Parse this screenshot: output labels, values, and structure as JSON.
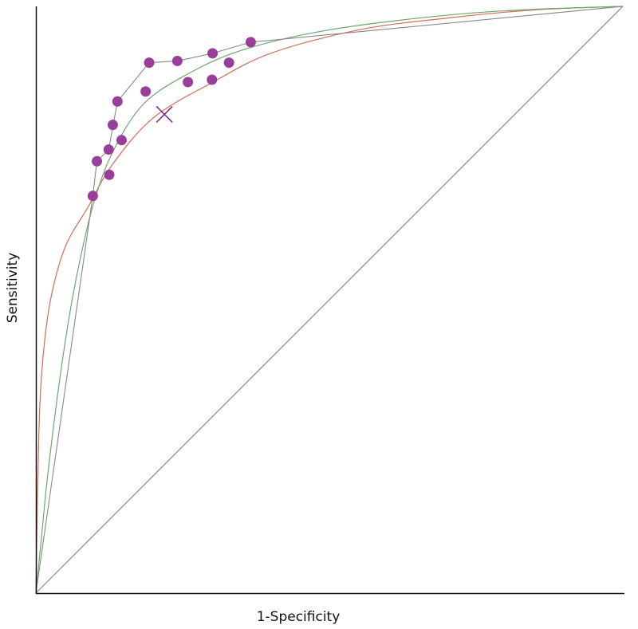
{
  "chart_data": {
    "type": "scatter",
    "xlabel": "1-Specificity",
    "ylabel": "Sensitivity",
    "xlim": [
      0,
      1
    ],
    "ylim": [
      0,
      1
    ],
    "grid": false,
    "legend": "none",
    "points": [
      {
        "x": 0.097,
        "y": 0.677
      },
      {
        "x": 0.104,
        "y": 0.736
      },
      {
        "x": 0.125,
        "y": 0.713
      },
      {
        "x": 0.124,
        "y": 0.756
      },
      {
        "x": 0.146,
        "y": 0.772
      },
      {
        "x": 0.131,
        "y": 0.798
      },
      {
        "x": 0.139,
        "y": 0.838
      },
      {
        "x": 0.187,
        "y": 0.855
      },
      {
        "x": 0.193,
        "y": 0.904
      },
      {
        "x": 0.241,
        "y": 0.907
      },
      {
        "x": 0.259,
        "y": 0.871
      },
      {
        "x": 0.3,
        "y": 0.875
      },
      {
        "x": 0.301,
        "y": 0.92
      },
      {
        "x": 0.329,
        "y": 0.904
      },
      {
        "x": 0.366,
        "y": 0.939
      }
    ],
    "summary_point": {
      "x": 0.219,
      "y": 0.816
    },
    "envelope": [
      {
        "x": 0,
        "y": 0
      },
      {
        "x": 0.097,
        "y": 0.677
      },
      {
        "x": 0.104,
        "y": 0.736
      },
      {
        "x": 0.124,
        "y": 0.756
      },
      {
        "x": 0.139,
        "y": 0.838
      },
      {
        "x": 0.193,
        "y": 0.904
      },
      {
        "x": 0.241,
        "y": 0.907
      },
      {
        "x": 0.301,
        "y": 0.92
      },
      {
        "x": 0.366,
        "y": 0.939
      },
      {
        "x": 1,
        "y": 1
      }
    ],
    "curves": [
      {
        "color": "#d46a5a",
        "points": [
          {
            "x": 0,
            "y": 0
          },
          {
            "x": 0.005,
            "y": 0.27
          },
          {
            "x": 0.012,
            "y": 0.4
          },
          {
            "x": 0.025,
            "y": 0.5
          },
          {
            "x": 0.05,
            "y": 0.59
          },
          {
            "x": 0.09,
            "y": 0.66
          },
          {
            "x": 0.13,
            "y": 0.73
          },
          {
            "x": 0.2,
            "y": 0.81
          },
          {
            "x": 0.3,
            "y": 0.87
          },
          {
            "x": 0.4,
            "y": 0.92
          },
          {
            "x": 0.55,
            "y": 0.96
          },
          {
            "x": 0.7,
            "y": 0.98
          },
          {
            "x": 0.85,
            "y": 0.994
          },
          {
            "x": 1,
            "y": 1
          }
        ]
      },
      {
        "color": "#6aa86a",
        "points": [
          {
            "x": 0,
            "y": 0
          },
          {
            "x": 0.01,
            "y": 0.1
          },
          {
            "x": 0.02,
            "y": 0.2
          },
          {
            "x": 0.04,
            "y": 0.36
          },
          {
            "x": 0.06,
            "y": 0.49
          },
          {
            "x": 0.08,
            "y": 0.59
          },
          {
            "x": 0.1,
            "y": 0.67
          },
          {
            "x": 0.13,
            "y": 0.75
          },
          {
            "x": 0.18,
            "y": 0.83
          },
          {
            "x": 0.25,
            "y": 0.88
          },
          {
            "x": 0.35,
            "y": 0.925
          },
          {
            "x": 0.5,
            "y": 0.96
          },
          {
            "x": 0.7,
            "y": 0.985
          },
          {
            "x": 0.85,
            "y": 0.995
          },
          {
            "x": 1,
            "y": 1
          }
        ]
      },
      {
        "color": "#888888",
        "points": [
          {
            "x": 0,
            "y": 0
          },
          {
            "x": 1,
            "y": 1
          }
        ]
      }
    ],
    "colors": {
      "points": "#993e9b",
      "summary": "#7b2d8c",
      "envelope": "#888888",
      "axis": "#111111"
    }
  }
}
